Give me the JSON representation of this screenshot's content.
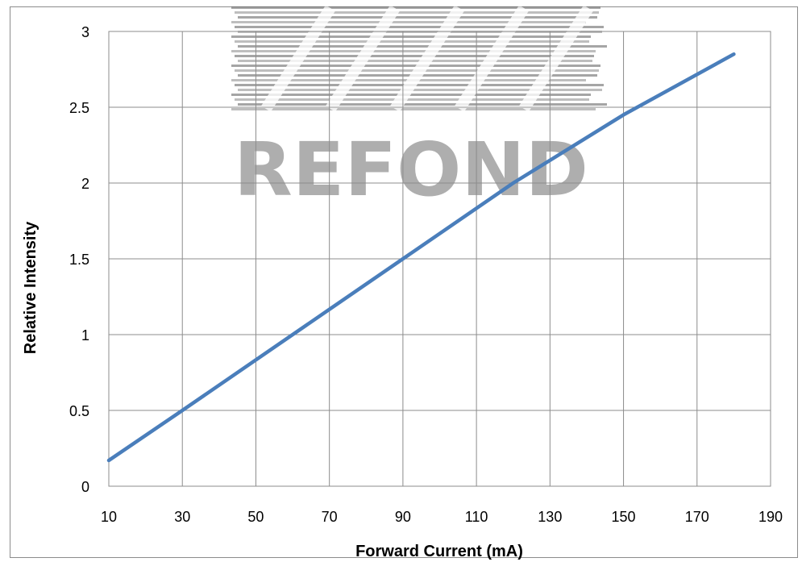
{
  "chart_data": {
    "type": "line",
    "title": "",
    "xlabel": "Forward Current (mA)",
    "ylabel": "Relative Intensity",
    "xlim": [
      10,
      190
    ],
    "ylim": [
      0,
      3
    ],
    "x_ticks": [
      10,
      30,
      50,
      70,
      90,
      110,
      130,
      150,
      170,
      190
    ],
    "y_ticks": [
      0,
      0.5,
      1,
      1.5,
      2,
      2.5,
      3
    ],
    "grid": true,
    "legend": "none",
    "series": [
      {
        "color": "#4a7ebb",
        "x": [
          10,
          30,
          60,
          90,
          120,
          150,
          180
        ],
        "y": [
          0.17,
          0.5,
          1.0,
          1.5,
          2.0,
          2.45,
          2.85
        ]
      }
    ]
  },
  "watermark": {
    "text": "REFOND",
    "color": "#6d6d6d"
  }
}
